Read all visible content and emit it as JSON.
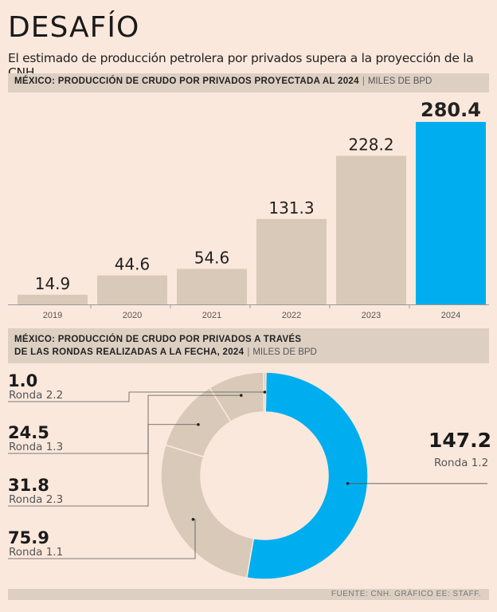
{
  "header": {
    "title": "DESAFÍO",
    "subtitle": "El estimado de producción petrolera por privados supera a la proyección de la CNH."
  },
  "bar_section": {
    "title": "MÉXICO: PRODUCCIÓN DE CRUDO POR PRIVADOS PROYECTADA AL 2024",
    "separator": "|",
    "unit": "MILES DE BPD"
  },
  "pie_section": {
    "title_line1": "MÉXICO: PRODUCCIÓN DE CRUDO POR PRIVADOS A TRAVÉS",
    "title_line2": "DE LAS RONDAS REALIZADAS A LA FECHA, 2024",
    "separator": "|",
    "unit": "MILES DE BPD"
  },
  "source": "FUENTE: CNH. GRÁFICO EE: STAFF.",
  "colors": {
    "bar": "#d8c9b8",
    "highlight": "#00aeef",
    "bg": "#fbe8dc",
    "leader": "#555555"
  },
  "chart_data": [
    {
      "type": "bar",
      "title": "MÉXICO: PRODUCCIÓN DE CRUDO POR PRIVADOS PROYECTADA AL 2024",
      "ylabel": "MILES DE BPD",
      "categories": [
        "2019",
        "2020",
        "2021",
        "2022",
        "2023",
        "2024"
      ],
      "values": [
        14.9,
        44.6,
        54.6,
        131.3,
        228.2,
        280.4
      ],
      "value_labels": [
        "14.9",
        "44.6",
        "54.6",
        "131.3",
        "228.2",
        "280.4"
      ],
      "highlight_index": 5,
      "ylim": [
        0,
        280.4
      ]
    },
    {
      "type": "pie",
      "title": "MÉXICO: PRODUCCIÓN DE CRUDO POR PRIVADOS A TRAVÉS DE LAS RONDAS REALIZADAS A LA FECHA, 2024",
      "slices": [
        {
          "label": "Ronda 1.2",
          "value": 147.2,
          "value_label": "147.2",
          "highlight": true
        },
        {
          "label": "Ronda 1.1",
          "value": 75.9,
          "value_label": "75.9",
          "highlight": false
        },
        {
          "label": "Ronda 2.3",
          "value": 31.8,
          "value_label": "31.8",
          "highlight": false
        },
        {
          "label": "Ronda 1.3",
          "value": 24.5,
          "value_label": "24.5",
          "highlight": false
        },
        {
          "label": "Ronda 2.2",
          "value": 1.0,
          "value_label": "1.0",
          "highlight": false
        }
      ]
    }
  ]
}
